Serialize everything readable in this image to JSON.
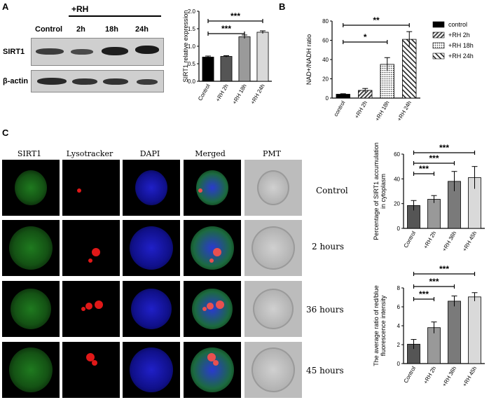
{
  "panelA": {
    "letter": "A",
    "treatment_label": "+RH",
    "lanes": [
      "Control",
      "2h",
      "18h",
      "24h"
    ],
    "rows": [
      "SIRT1",
      "β-actin"
    ]
  },
  "panelB": {
    "letter": "B"
  },
  "panelC": {
    "letter": "C",
    "headers": [
      "SIRT1",
      "Lysotracker",
      "DAPI",
      "Merged",
      "PMT"
    ],
    "timepoints": [
      "Control",
      "2 hours",
      "36 hours",
      "45 hours"
    ]
  },
  "chart_data": [
    {
      "id": "sirt1-expression",
      "type": "bar",
      "ylabel": "SIRT1 relative expression",
      "categories": [
        "Control",
        "+RH 2h",
        "+RH 18h",
        "+RH 24h"
      ],
      "values": [
        0.69,
        0.71,
        1.27,
        1.4
      ],
      "errors": [
        0.03,
        0.02,
        0.05,
        0.04
      ],
      "colors": [
        "#000000",
        "#555555",
        "#9a9a9a",
        "#d9d9d9"
      ],
      "ylim": [
        0,
        2.0
      ],
      "yticks": [
        "0.0",
        "0.5",
        "1.0",
        "1.5",
        "2.0"
      ],
      "significance": [
        {
          "from": 0,
          "to": 3,
          "label": "***"
        },
        {
          "from": 0,
          "to": 2,
          "label": "***"
        }
      ]
    },
    {
      "id": "nad-ratio",
      "type": "bar",
      "ylabel": "NAD+/NADH ratio",
      "categories": [
        "control",
        "+RH 2h",
        "+RH 18h",
        "+RH 24h"
      ],
      "values": [
        4,
        8,
        35,
        61
      ],
      "errors": [
        0.5,
        2,
        7,
        8
      ],
      "patterns": [
        "solid",
        "stripe",
        "dots",
        "diag"
      ],
      "ylim": [
        0,
        80
      ],
      "yticks": [
        "0",
        "20",
        "40",
        "60",
        "80"
      ],
      "legend": [
        "control",
        "+RH 2h",
        "+RH 18h",
        "+RH 24h"
      ],
      "legend_placement": "right",
      "significance": [
        {
          "from": 0,
          "to": 3,
          "label": "**"
        },
        {
          "from": 0,
          "to": 2,
          "label": "*"
        }
      ]
    },
    {
      "id": "sirt1-accumulation",
      "type": "bar",
      "ylabel": [
        "Percentage of SIRT1 accumulation",
        "in cytoplasm"
      ],
      "categories": [
        "Control",
        "+RH 2h",
        "+RH 36h",
        "+RH 45h"
      ],
      "values": [
        18.5,
        23.5,
        38,
        41
      ],
      "errors": [
        4,
        3,
        8,
        9
      ],
      "colors": [
        "#555555",
        "#999999",
        "#7a7a7a",
        "#d9d9d9"
      ],
      "ylim": [
        0,
        60
      ],
      "yticks": [
        "0",
        "20",
        "40",
        "60"
      ],
      "significance": [
        {
          "from": 0,
          "to": 3,
          "label": "***"
        },
        {
          "from": 0,
          "to": 2,
          "label": "***"
        },
        {
          "from": 0,
          "to": 1,
          "label": "***"
        }
      ]
    },
    {
      "id": "red-blue-ratio",
      "type": "bar",
      "ylabel": [
        "The average ratio of red/blue",
        "fluorescence intensity"
      ],
      "categories": [
        "Control",
        "+RH 2h",
        "+RH 36h",
        "+RH 45h"
      ],
      "values": [
        2.05,
        3.8,
        6.6,
        7.05
      ],
      "errors": [
        0.5,
        0.6,
        0.55,
        0.45
      ],
      "colors": [
        "#555555",
        "#999999",
        "#7a7a7a",
        "#d9d9d9"
      ],
      "ylim": [
        0,
        8
      ],
      "yticks": [
        "0",
        "2",
        "4",
        "6",
        "8"
      ],
      "significance": [
        {
          "from": 0,
          "to": 3,
          "label": "***"
        },
        {
          "from": 0,
          "to": 2,
          "label": "***"
        },
        {
          "from": 0,
          "to": 1,
          "label": "***"
        }
      ]
    }
  ]
}
